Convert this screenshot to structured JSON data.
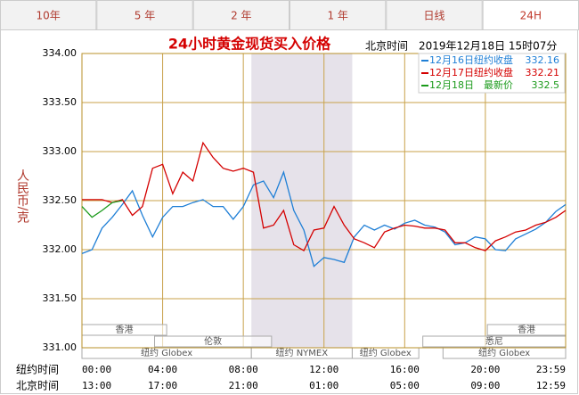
{
  "tabs": [
    "10年",
    "5 年",
    "2 年",
    "1 年",
    "日线",
    "24H"
  ],
  "active_tab": 5,
  "chart_data": {
    "type": "line",
    "title": "24小时黄金现货买入价格",
    "timestamp": "北京时间　2019年12月18日 15时07分",
    "y_label": "人民币/克",
    "x_row_label": "纽约时间",
    "x2_row_label": "北京时间",
    "x": [
      0,
      0.5,
      1,
      1.5,
      2,
      2.5,
      3,
      3.5,
      4,
      4.5,
      5,
      5.5,
      6,
      6.5,
      7,
      7.5,
      8,
      8.5,
      9,
      9.5,
      10,
      10.5,
      11,
      11.5,
      12,
      12.5,
      13,
      13.5,
      14,
      14.5,
      15,
      15.5,
      16,
      16.5,
      17,
      17.5,
      18,
      18.5,
      19,
      19.5,
      20,
      20.5,
      21,
      21.5,
      22,
      22.5,
      23,
      23.5,
      23.98
    ],
    "xlim": [
      0,
      23.98
    ],
    "xticks": [
      {
        "value": 0,
        "label": "00:00"
      },
      {
        "value": 4,
        "label": "04:00"
      },
      {
        "value": 8,
        "label": "08:00"
      },
      {
        "value": 12,
        "label": "12:00"
      },
      {
        "value": 16,
        "label": "16:00"
      },
      {
        "value": 20,
        "label": "20:00"
      },
      {
        "value": 23.98,
        "label": "23:59"
      }
    ],
    "x2_labels": [
      "13:00",
      "17:00",
      "21:00",
      "01:00",
      "05:00",
      "09:00",
      "12:59"
    ],
    "ylim": [
      331,
      334
    ],
    "yticks": [
      {
        "value": 331,
        "label": "331.00"
      },
      {
        "value": 331.5,
        "label": "331.50"
      },
      {
        "value": 332,
        "label": "332.00"
      },
      {
        "value": 332.5,
        "label": "332.50"
      },
      {
        "value": 333,
        "label": "333.00"
      },
      {
        "value": 333.5,
        "label": "333.50"
      },
      {
        "value": 334,
        "label": "334.00"
      }
    ],
    "grid": true,
    "highlight": [
      8.4,
      13.4
    ],
    "sessions": [
      [
        {
          "label": "香港",
          "start": 0,
          "end": 4.2
        },
        {
          "label": "香港",
          "start": 20.1,
          "end": 23.98
        }
      ],
      [
        {
          "label": "伦敦",
          "start": 3.6,
          "end": 9.4
        },
        {
          "label": "悉尼",
          "start": 16.9,
          "end": 23.98
        }
      ],
      [
        {
          "label": "纽约 Globex",
          "start": 0,
          "end": 8.4
        },
        {
          "label": "纽约 NYMEX",
          "start": 8.4,
          "end": 13.4
        },
        {
          "label": "纽约 Globex",
          "start": 13.4,
          "end": 16.7
        },
        {
          "label": "纽约 Globex",
          "start": 17.9,
          "end": 23.98
        }
      ]
    ],
    "series": [
      {
        "name": "12月16日",
        "label": "纽约收盘",
        "last": 332.16,
        "color": "#1f7fd6",
        "values": [
          331.96,
          332.0,
          332.22,
          332.33,
          332.46,
          332.6,
          332.35,
          332.13,
          332.33,
          332.44,
          332.44,
          332.48,
          332.51,
          332.44,
          332.44,
          332.31,
          332.44,
          332.66,
          332.7,
          332.53,
          332.79,
          332.4,
          332.2,
          331.83,
          331.92,
          331.9,
          331.87,
          332.13,
          332.25,
          332.2,
          332.25,
          332.21,
          332.27,
          332.3,
          332.25,
          332.23,
          332.18,
          332.05,
          332.07,
          332.13,
          332.11,
          332.0,
          331.99,
          332.11,
          332.16,
          332.21,
          332.28,
          332.39,
          332.46
        ]
      },
      {
        "name": "12月17日",
        "label": "纽约收盘",
        "last": 332.21,
        "color": "#d40000",
        "values": [
          332.51,
          332.51,
          332.51,
          332.48,
          332.51,
          332.35,
          332.44,
          332.83,
          332.87,
          332.57,
          332.79,
          332.7,
          333.09,
          332.94,
          332.83,
          332.8,
          332.83,
          332.79,
          332.22,
          332.25,
          332.4,
          332.05,
          331.99,
          332.2,
          332.22,
          332.44,
          332.25,
          332.11,
          332.07,
          332.02,
          332.18,
          332.22,
          332.25,
          332.24,
          332.22,
          332.22,
          332.2,
          332.07,
          332.07,
          332.02,
          331.99,
          332.09,
          332.13,
          332.18,
          332.2,
          332.25,
          332.28,
          332.33,
          332.4
        ]
      },
      {
        "name": "12月18日",
        "label": "最新价",
        "last": 332.5,
        "color": "#1a9a1a",
        "values": [
          332.44,
          332.33,
          332.4,
          332.48,
          332.5,
          null,
          null,
          null,
          null,
          null,
          null,
          null,
          null,
          null,
          null,
          null,
          null,
          null,
          null,
          null,
          null,
          null,
          null,
          null,
          null,
          null,
          null,
          null,
          null,
          null,
          null,
          null,
          null,
          null,
          null,
          null,
          null,
          null,
          null,
          null,
          null,
          null,
          null,
          null,
          null,
          null,
          null,
          null,
          null
        ]
      }
    ]
  }
}
